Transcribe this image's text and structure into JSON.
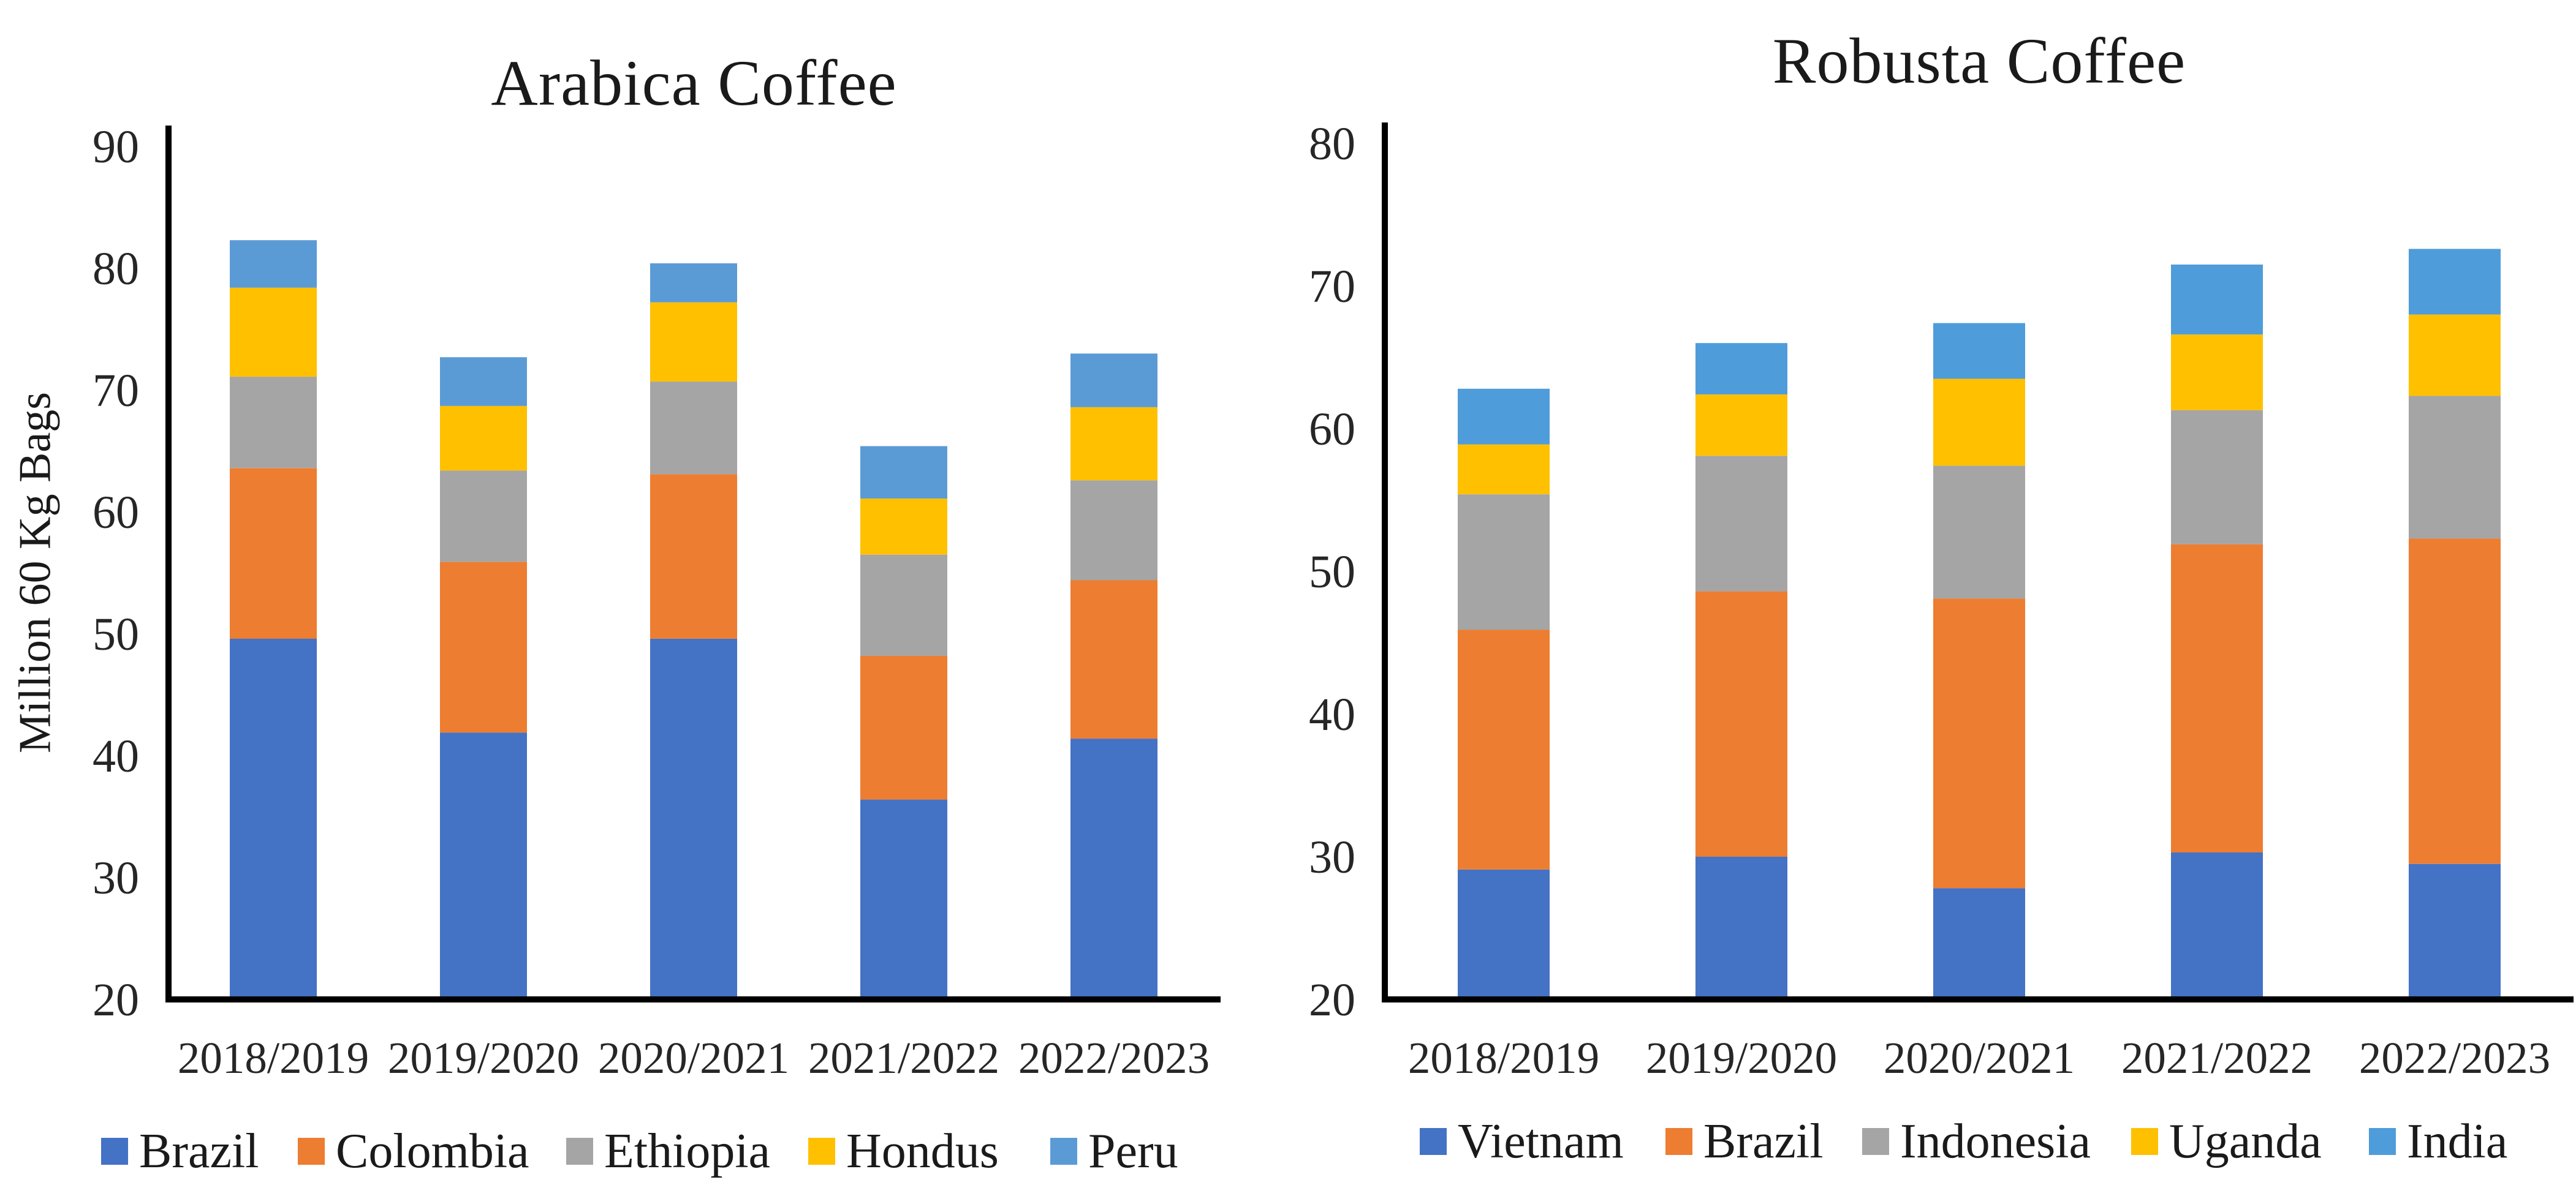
{
  "figure_background": "#ffffff",
  "text_color": "#1a1a1a",
  "axis_color": "#000000",
  "chart_data": [
    {
      "type": "bar",
      "stacked": true,
      "title": "Arabica Coffee",
      "ylabel": "Million 60 Kg Bags",
      "xlabel": "",
      "ylim": [
        20,
        90
      ],
      "yticks": [
        20,
        30,
        40,
        50,
        60,
        70,
        80,
        90
      ],
      "grid": false,
      "legend_position": "bottom",
      "categories": [
        "2018/2019",
        "2019/2020",
        "2020/2021",
        "2021/2022",
        "2022/2023"
      ],
      "series": [
        {
          "name": "Brazil",
          "color": "#4472C4",
          "values": [
            49.6,
            41.9,
            49.6,
            36.4,
            41.4
          ]
        },
        {
          "name": "Colombia",
          "color": "#ED7D31",
          "values": [
            14.0,
            14.0,
            13.5,
            11.8,
            13.0
          ]
        },
        {
          "name": "Ethiopia",
          "color": "#A5A5A5",
          "values": [
            7.5,
            7.5,
            7.6,
            8.3,
            8.2
          ]
        },
        {
          "name": "Hondus",
          "color": "#FFC000",
          "values": [
            7.3,
            5.3,
            6.5,
            4.6,
            6.0
          ]
        },
        {
          "name": "Peru",
          "color": "#5B9BD5",
          "values": [
            3.9,
            4.0,
            3.2,
            4.3,
            4.4
          ]
        }
      ],
      "stack_totals": [
        82.3,
        72.7,
        80.4,
        65.4,
        73.0
      ]
    },
    {
      "type": "bar",
      "stacked": true,
      "title": "Robusta Coffee",
      "ylabel": "",
      "xlabel": "",
      "ylim": [
        20,
        80
      ],
      "yticks": [
        20,
        30,
        40,
        50,
        60,
        70,
        80
      ],
      "grid": false,
      "legend_position": "bottom",
      "categories": [
        "2018/2019",
        "2019/2020",
        "2020/2021",
        "2021/2022",
        "2022/2023"
      ],
      "series": [
        {
          "name": "Vietnam",
          "color": "#4472C4",
          "values": [
            29.1,
            30.0,
            27.8,
            30.3,
            29.5
          ]
        },
        {
          "name": "Brazil",
          "color": "#ED7D31",
          "values": [
            16.8,
            18.6,
            20.3,
            21.6,
            22.8
          ]
        },
        {
          "name": "Indonesia",
          "color": "#A5A5A5",
          "values": [
            9.5,
            9.5,
            9.3,
            9.4,
            10.0
          ]
        },
        {
          "name": "Uganda",
          "color": "#FFC000",
          "values": [
            3.5,
            4.3,
            6.1,
            5.3,
            5.7
          ]
        },
        {
          "name": "India",
          "color": "#4F9CDA",
          "values": [
            3.9,
            3.6,
            3.9,
            4.9,
            4.6
          ]
        }
      ],
      "stack_totals": [
        62.8,
        66.0,
        67.4,
        71.5,
        72.6
      ]
    }
  ]
}
